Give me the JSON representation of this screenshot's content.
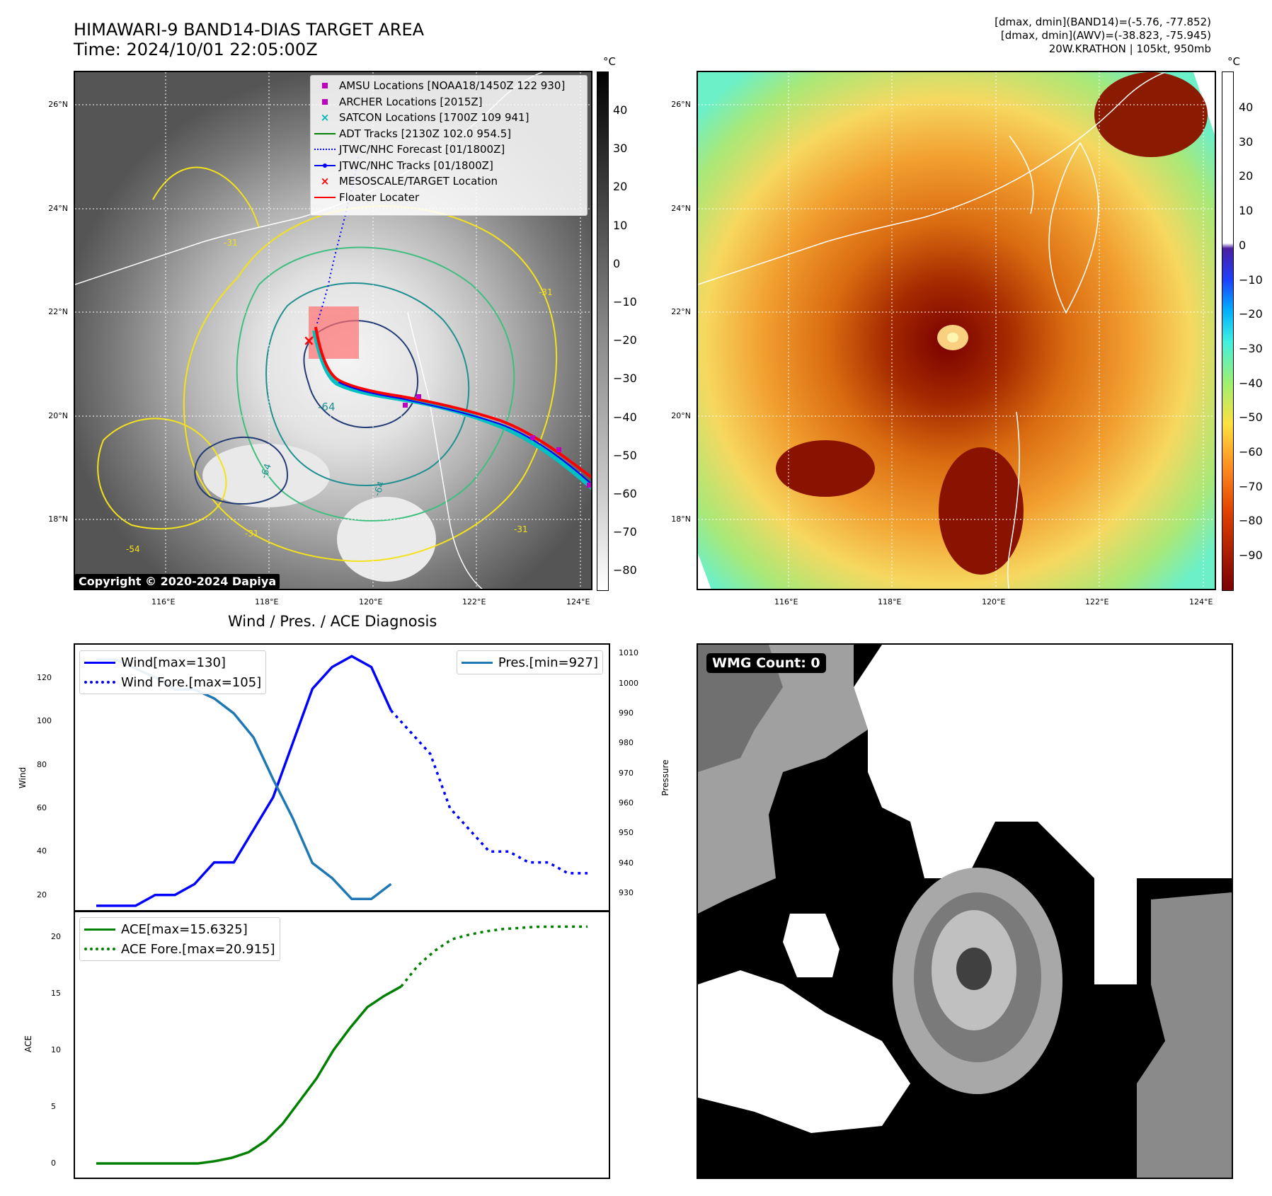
{
  "header": {
    "title_line1": "HIMAWARI-9 BAND14-DIAS TARGET AREA",
    "title_line2": "Time: 2024/10/01 22:05:00Z",
    "info_line1": "[dmax, dmin](BAND14)=(-5.76, -77.852)",
    "info_line2": "[dmax, dmin](AWV)=(-38.823, -75.945)",
    "info_line3": "20W.KRATHON | 105kt, 950mb"
  },
  "map": {
    "lat_ticks": [
      "26°N",
      "24°N",
      "22°N",
      "20°N",
      "18°N"
    ],
    "lon_ticks": [
      "116°E",
      "118°E",
      "120°E",
      "122°E",
      "124°E"
    ],
    "copyright": "Copyright © 2020-2024 Dapiya",
    "contour_labels": [
      "-64",
      "-64",
      "-64",
      "-31",
      "-31",
      "-31",
      "-54",
      "-31"
    ],
    "colors": {
      "ir_land": "#555555",
      "coast": "#ffffff",
      "contour_yellow": "#f4e21a",
      "contour_green": "#3fbf7f",
      "contour_teal": "#1f8f8f",
      "contour_navy": "#223a73",
      "floater": "#ff0000",
      "jtwc": "#0000ff",
      "satcon": "#00c0c0",
      "amsu": "#c000c0"
    }
  },
  "legend": [
    {
      "label": "AMSU Locations [NOAA18/1450Z 122 930]",
      "symbol": "square",
      "color": "#c000c0"
    },
    {
      "label": "ARCHER Locations [2015Z]",
      "symbol": "square",
      "color": "#c000c0"
    },
    {
      "label": "SATCON Locations [1700Z 109 941]",
      "symbol": "x",
      "color": "#00b8b8"
    },
    {
      "label": "ADT Tracks [2130Z 102.0 954.5]",
      "symbol": "line",
      "color": "#008000"
    },
    {
      "label": "JTWC/NHC Forecast [01/1800Z]",
      "symbol": "dotted",
      "color": "#0000ff"
    },
    {
      "label": "JTWC/NHC Tracks [01/1800Z]",
      "symbol": "line-dot",
      "color": "#0000ff"
    },
    {
      "label": "MESOSCALE/TARGET Location",
      "symbol": "x",
      "color": "#ff0000"
    },
    {
      "label": "Floater Locater",
      "symbol": "line",
      "color": "#ff0000"
    }
  ],
  "colorbar_left": {
    "unit": "°C",
    "ticks": [
      "40",
      "30",
      "20",
      "10",
      "0",
      "−10",
      "−20",
      "−30",
      "−40",
      "−50",
      "−60",
      "−70",
      "−80"
    ]
  },
  "colorbar_right": {
    "unit": "°C",
    "ticks": [
      "40",
      "30",
      "20",
      "10",
      "0",
      "−10",
      "−20",
      "−30",
      "−40",
      "−50",
      "−60",
      "−70",
      "−80",
      "−90"
    ]
  },
  "diag": {
    "title": "Wind / Pres. / ACE Diagnosis",
    "wind_ylabel": "Wind",
    "pres_ylabel": "Pressure",
    "ace_ylabel": "ACE",
    "wind_ticks": [
      "120",
      "100",
      "80",
      "60",
      "40",
      "20"
    ],
    "pres_ticks": [
      "1010",
      "1000",
      "990",
      "980",
      "970",
      "960",
      "950",
      "940",
      "930"
    ],
    "ace_ticks": [
      "20",
      "15",
      "10",
      "5",
      "0"
    ],
    "wind_legend": [
      "Wind[max=130]",
      "Wind Fore.[max=105]"
    ],
    "pres_legend": [
      "Pres.[min=927]"
    ],
    "ace_legend": [
      "ACE[max=15.6325]",
      "ACE Fore.[max=20.915]"
    ],
    "colors": {
      "wind": "#0000ff",
      "pres": "#1f77b4",
      "ace": "#008000"
    }
  },
  "wmg": {
    "label": "WMG Count: 0"
  },
  "chart_data": [
    {
      "type": "line",
      "title": "Wind / Pres. / ACE Diagnosis",
      "ylabel": "Wind",
      "ylim": [
        14,
        134
      ],
      "series": [
        {
          "name": "Wind[max=130]",
          "x": [
            0,
            1,
            2,
            3,
            4,
            5,
            6,
            7,
            8,
            9,
            10,
            11,
            12,
            13,
            14,
            15
          ],
          "values": [
            15,
            15,
            15,
            20,
            20,
            25,
            35,
            35,
            50,
            65,
            90,
            115,
            125,
            130,
            125,
            105
          ]
        },
        {
          "name": "Wind Fore.[max=105]",
          "x": [
            15,
            16,
            17,
            18,
            19,
            20,
            21,
            22,
            23,
            24,
            25
          ],
          "values": [
            105,
            95,
            85,
            60,
            50,
            40,
            40,
            35,
            35,
            30,
            30
          ]
        }
      ]
    },
    {
      "type": "line",
      "ylabel": "Pressure",
      "ylim": [
        925,
        1012
      ],
      "series": [
        {
          "name": "Pres.[min=927]",
          "x": [
            0,
            1,
            2,
            3,
            4,
            5,
            6,
            7,
            8,
            9,
            10,
            11,
            12,
            13,
            14,
            15
          ],
          "values": [
            1008,
            1008,
            1005,
            1002,
            998,
            998,
            995,
            990,
            982,
            968,
            955,
            940,
            935,
            928,
            928,
            933
          ]
        }
      ]
    },
    {
      "type": "line",
      "ylabel": "ACE",
      "ylim": [
        -1,
        22
      ],
      "series": [
        {
          "name": "ACE[max=15.6325]",
          "x": [
            0,
            2,
            4,
            6,
            7,
            8,
            9,
            10,
            11,
            12,
            13,
            14,
            15,
            16,
            17,
            18
          ],
          "values": [
            0,
            0,
            0,
            0,
            0.2,
            0.5,
            1,
            2,
            3.5,
            5.5,
            7.5,
            10,
            12,
            13.8,
            14.8,
            15.63
          ]
        },
        {
          "name": "ACE Fore.[max=20.915]",
          "x": [
            18,
            19,
            20,
            21,
            22,
            23,
            24,
            25,
            26,
            27,
            28,
            29
          ],
          "values": [
            15.63,
            17.5,
            18.8,
            19.8,
            20.2,
            20.5,
            20.7,
            20.8,
            20.9,
            20.91,
            20.915,
            20.915
          ]
        }
      ]
    }
  ]
}
